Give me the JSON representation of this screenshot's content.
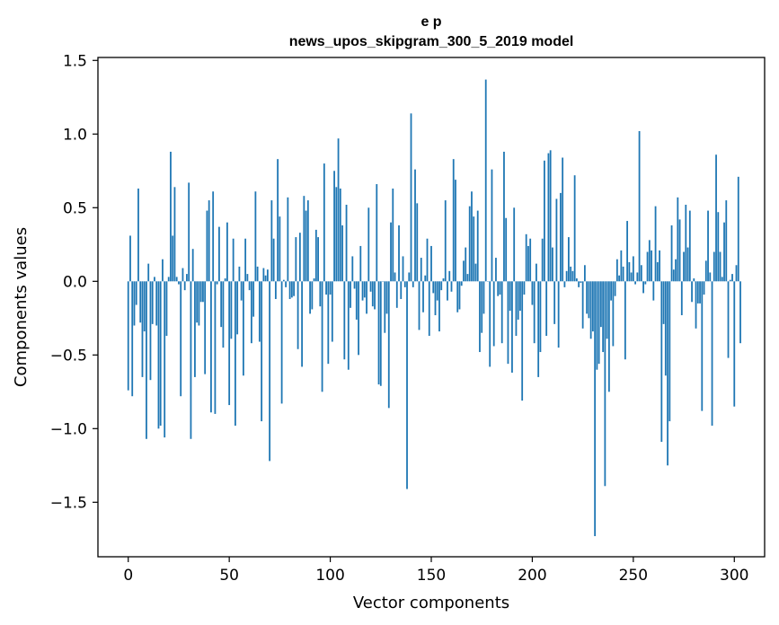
{
  "chart_data": {
    "type": "bar",
    "title_line1": "e p",
    "title_line2": "news_upos_skipgram_300_5_2019 model",
    "xlabel": "Vector components",
    "ylabel": "Components values",
    "xlim": [
      -15,
      315
    ],
    "ylim": [
      -1.87,
      1.52
    ],
    "xticks": [
      0,
      50,
      100,
      150,
      200,
      250,
      300
    ],
    "xtick_labels": [
      "0",
      "50",
      "100",
      "150",
      "200",
      "250",
      "300"
    ],
    "yticks": [
      -1.5,
      -1.0,
      -0.5,
      0.0,
      0.5,
      1.0,
      1.5
    ],
    "ytick_labels": [
      "−1.5",
      "−1.0",
      "−0.5",
      "0.0",
      "0.5",
      "1.0",
      "1.5"
    ],
    "bar_color": "#1f77b4",
    "values": [
      -0.74,
      0.31,
      -0.78,
      -0.3,
      -0.16,
      0.63,
      -0.28,
      -0.65,
      -0.34,
      -1.07,
      0.12,
      -0.67,
      -0.29,
      0.03,
      -0.3,
      -1.0,
      -0.98,
      0.15,
      -1.06,
      -0.37,
      0.03,
      0.88,
      0.31,
      0.64,
      0.03,
      -0.02,
      -0.78,
      0.09,
      -0.06,
      0.05,
      0.67,
      -1.07,
      0.22,
      -0.65,
      -0.28,
      -0.3,
      -0.14,
      -0.14,
      -0.63,
      0.48,
      0.55,
      -0.89,
      0.61,
      -0.9,
      -0.02,
      0.37,
      -0.31,
      -0.45,
      0.02,
      0.4,
      -0.84,
      -0.39,
      0.29,
      -0.98,
      -0.36,
      0.1,
      -0.13,
      -0.64,
      0.29,
      0.05,
      -0.06,
      -0.42,
      -0.24,
      0.61,
      0.1,
      -0.41,
      -0.95,
      0.09,
      0.04,
      0.08,
      -1.22,
      0.55,
      0.29,
      -0.12,
      0.83,
      0.44,
      -0.83,
      0.01,
      -0.04,
      0.57,
      -0.12,
      -0.11,
      -0.1,
      0.3,
      -0.46,
      0.33,
      -0.58,
      0.58,
      0.48,
      0.55,
      -0.22,
      -0.19,
      0.02,
      0.35,
      0.3,
      -0.17,
      -0.75,
      0.8,
      -0.09,
      -0.56,
      -0.09,
      -0.41,
      0.75,
      0.64,
      0.97,
      0.63,
      0.38,
      -0.53,
      0.52,
      -0.6,
      -0.18,
      0.17,
      -0.05,
      -0.26,
      -0.5,
      0.24,
      -0.13,
      -0.11,
      -0.22,
      0.5,
      -0.07,
      -0.17,
      -0.19,
      0.66,
      -0.7,
      -0.71,
      0.0,
      -0.35,
      -0.22,
      -0.86,
      0.4,
      0.63,
      0.06,
      -0.18,
      0.38,
      -0.12,
      0.17,
      -0.04,
      -1.41,
      0.06,
      1.14,
      -0.04,
      0.76,
      0.53,
      -0.33,
      0.16,
      -0.21,
      0.04,
      0.29,
      -0.37,
      0.24,
      -0.08,
      -0.23,
      -0.13,
      -0.34,
      -0.06,
      0.02,
      0.55,
      -0.13,
      0.07,
      -0.07,
      0.83,
      0.69,
      -0.21,
      -0.19,
      -0.03,
      0.14,
      0.23,
      0.05,
      0.51,
      0.61,
      0.44,
      0.12,
      0.48,
      -0.48,
      -0.35,
      -0.22,
      1.37,
      0.0,
      -0.58,
      0.76,
      -0.44,
      0.16,
      -0.1,
      -0.09,
      -0.42,
      0.88,
      0.43,
      -0.56,
      -0.2,
      -0.62,
      0.5,
      -0.37,
      -0.26,
      -0.2,
      -0.81,
      -0.09,
      0.32,
      0.24,
      0.29,
      -0.16,
      -0.42,
      0.12,
      -0.65,
      -0.48,
      0.29,
      0.82,
      -0.37,
      0.87,
      0.89,
      0.23,
      -0.29,
      0.56,
      -0.45,
      0.6,
      0.84,
      -0.04,
      0.07,
      0.3,
      0.1,
      0.07,
      0.72,
      0.02,
      -0.04,
      -0.01,
      -0.32,
      0.11,
      -0.22,
      -0.25,
      -0.39,
      -0.34,
      -1.73,
      -0.6,
      -0.56,
      -0.31,
      -0.48,
      -1.39,
      -0.39,
      -0.75,
      -0.13,
      -0.44,
      -0.1,
      0.15,
      0.04,
      0.21,
      0.1,
      -0.53,
      0.41,
      0.13,
      0.06,
      0.17,
      -0.02,
      0.06,
      1.02,
      0.11,
      -0.08,
      -0.02,
      0.2,
      0.28,
      0.21,
      -0.13,
      0.51,
      0.13,
      0.21,
      -1.09,
      -0.29,
      -0.64,
      -1.25,
      -0.95,
      0.38,
      0.08,
      0.15,
      0.57,
      0.42,
      -0.23,
      0.2,
      0.52,
      0.23,
      0.48,
      -0.14,
      0.02,
      -0.32,
      -0.15,
      -0.15,
      -0.88,
      -0.09,
      0.14,
      0.48,
      0.06,
      -0.98,
      0.2,
      0.86,
      0.47,
      0.2,
      0.03,
      0.4,
      0.55,
      -0.52,
      0.01,
      0.05,
      -0.85,
      0.11,
      0.71,
      -0.42
    ]
  }
}
